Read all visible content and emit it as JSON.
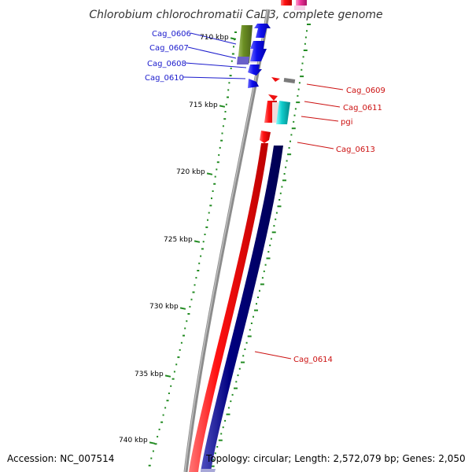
{
  "title": "Chlorobium chlorochromatii CaD3, complete genome",
  "footer": {
    "accession": "Accession: NC_007514",
    "summary": "Topology: circular; Length: 2,572,079 bp; Genes: 2,050"
  },
  "ticks": [
    "710 kbp",
    "715 kbp",
    "720 kbp",
    "725 kbp",
    "730 kbp",
    "735 kbp",
    "740 kbp"
  ],
  "genes_left": [
    "Cag_0606",
    "Cag_0607",
    "Cag_0608",
    "Cag_0610"
  ],
  "genes_right": [
    "Cag_0609",
    "Cag_0611",
    "pgi",
    "Cag_0613",
    "Cag_0614"
  ],
  "colors": {
    "backbone": "#8c8c8c",
    "forward_label": "#1a1acc",
    "reverse_label": "#cc1111",
    "blue_gene": "#1010ee",
    "olive_gene": "#6b8e23",
    "red_gene": "#ee1111",
    "teal_gene": "#11cccc",
    "navy_gene": "#000080",
    "pink_gene": "#ee3399",
    "gc_tick": "#228b22"
  }
}
